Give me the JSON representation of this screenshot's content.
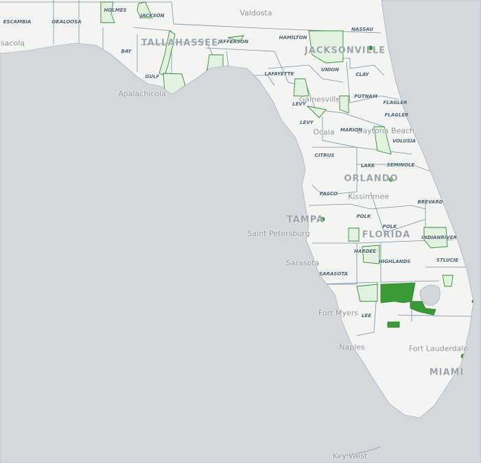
{
  "map": {
    "colors": {
      "water": "#d4d8dc",
      "land": "#f4f5f3",
      "county_line": "#6f8ea5",
      "protected_fill": "#e3f1e0",
      "protected_stroke": "#2e8b2e",
      "highlight": "#3a9a35"
    },
    "cities": [
      "Valdosta",
      "nsacola",
      "Apalachicola",
      "Gainesville",
      "Ocala",
      "Daytona Beach",
      "Kissimmee",
      "Saint Petersburg",
      "Sarasota",
      "Fort Myers",
      "Naples",
      "Fort Lauderdale",
      "Key West"
    ],
    "major_cities": [
      "TALLAHASSEE",
      "JACKSONVILLE",
      "ORLANDO",
      "TAMPA",
      "FLORIDA",
      "MIAMI"
    ],
    "counties": [
      "ESCAMBIA",
      "OKALOOSA",
      "HOLMES",
      "JACKSON",
      "BAY",
      "GULF",
      "JEFFERSON",
      "HAMILTON",
      "NASSAU",
      "LAFAYETTE",
      "UNION",
      "CLAY",
      "PUTNAM",
      "FLAGLER",
      "FLAGLER",
      "LEVY",
      "LEVY",
      "MARION",
      "VOLUSIA",
      "CITRUS",
      "LAKE",
      "SEMINOLE",
      "PASCO",
      "BREVARD",
      "POLK",
      "POLK",
      "INDIANRIVER",
      "HARDEE",
      "HIGHLANDS",
      "STLUCIE",
      "SARASOTA",
      "LEE"
    ]
  }
}
